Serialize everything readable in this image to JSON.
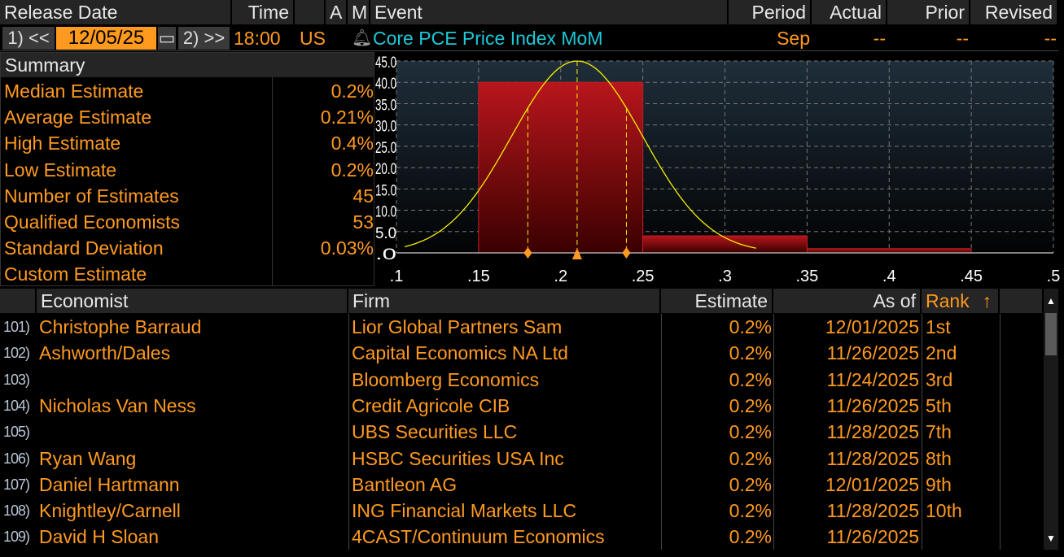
{
  "header": {
    "release_date": "Release Date",
    "time": "Time",
    "a": "A",
    "m": "M",
    "event": "Event",
    "period": "Period",
    "actual": "Actual",
    "prior": "Prior",
    "revised": "Revised"
  },
  "controls": {
    "prev_label": "1) <<",
    "date": "12/05/25",
    "next_label": "2) >>",
    "time": "18:00",
    "country": "US",
    "event": "Core PCE Price Index MoM",
    "period": "Sep",
    "actual": "--",
    "prior": "--",
    "revised": "--"
  },
  "summary": {
    "title": "Summary",
    "rows": [
      {
        "label": "Median Estimate",
        "value": "0.2%"
      },
      {
        "label": "Average Estimate",
        "value": "0.21%"
      },
      {
        "label": "High Estimate",
        "value": "0.4%"
      },
      {
        "label": "Low Estimate",
        "value": "0.2%"
      },
      {
        "label": "Number of Estimates",
        "value": "45"
      },
      {
        "label": "Qualified Economists",
        "value": "53"
      },
      {
        "label": "Standard Deviation",
        "value": "0.03%"
      },
      {
        "label": "Custom Estimate",
        "value": ""
      }
    ]
  },
  "chart_data": {
    "type": "bar",
    "title": "",
    "xlim": [
      0.1,
      0.5
    ],
    "ylim": [
      0,
      45
    ],
    "x_ticks": [
      ".1",
      ".15",
      ".2",
      ".25",
      ".3",
      ".35",
      ".4",
      ".45",
      ".5"
    ],
    "y_ticks": [
      ".0",
      "5.0",
      "10.0",
      "15.0",
      "20.0",
      "25.0",
      "30.0",
      "35.0",
      "40.0",
      "45.0"
    ],
    "bins": [
      {
        "from": 0.15,
        "to": 0.25,
        "value": 40
      },
      {
        "from": 0.25,
        "to": 0.35,
        "value": 4
      },
      {
        "from": 0.35,
        "to": 0.45,
        "value": 1
      }
    ],
    "normal_curve": {
      "mean": 0.21,
      "sd": 0.04,
      "peak": 45,
      "from": 0.105,
      "to": 0.32
    },
    "markers": [
      {
        "x": 0.18,
        "type": "diamond"
      },
      {
        "x": 0.21,
        "type": "triangle"
      },
      {
        "x": 0.24,
        "type": "diamond"
      }
    ],
    "grid": true,
    "colors": {
      "bar": "#b0141a",
      "curve": "#f5f000",
      "marker": "#ff9a1f"
    }
  },
  "table": {
    "headers": {
      "economist": "Economist",
      "firm": "Firm",
      "estimate": "Estimate",
      "as_of": "As of",
      "rank": "Rank",
      "sort_icon": "↑"
    },
    "rows": [
      {
        "n": "101)",
        "economist": "Christophe Barraud",
        "firm": "Lior Global Partners Sam",
        "estimate": "0.2%",
        "as_of": "12/01/2025",
        "rank": "1st"
      },
      {
        "n": "102)",
        "economist": "Ashworth/Dales",
        "firm": "Capital Economics NA Ltd",
        "estimate": "0.2%",
        "as_of": "11/26/2025",
        "rank": "2nd"
      },
      {
        "n": "103)",
        "economist": "",
        "firm": "Bloomberg Economics",
        "estimate": "0.2%",
        "as_of": "11/24/2025",
        "rank": "3rd"
      },
      {
        "n": "104)",
        "economist": "Nicholas Van Ness",
        "firm": "Credit Agricole CIB",
        "estimate": "0.2%",
        "as_of": "11/26/2025",
        "rank": "5th"
      },
      {
        "n": "105)",
        "economist": "",
        "firm": "UBS Securities LLC",
        "estimate": "0.2%",
        "as_of": "11/28/2025",
        "rank": "7th"
      },
      {
        "n": "106)",
        "economist": "Ryan Wang",
        "firm": "HSBC Securities USA Inc",
        "estimate": "0.2%",
        "as_of": "11/28/2025",
        "rank": "8th"
      },
      {
        "n": "107)",
        "economist": "Daniel Hartmann",
        "firm": "Bantleon AG",
        "estimate": "0.2%",
        "as_of": "12/01/2025",
        "rank": "9th"
      },
      {
        "n": "108)",
        "economist": "Knightley/Carnell",
        "firm": "ING Financial Markets LLC",
        "estimate": "0.2%",
        "as_of": "11/28/2025",
        "rank": "10th"
      },
      {
        "n": "109)",
        "economist": "David H Sloan",
        "firm": "4CAST/Continuum Economics",
        "estimate": "0.2%",
        "as_of": "11/26/2025",
        "rank": ""
      }
    ]
  }
}
